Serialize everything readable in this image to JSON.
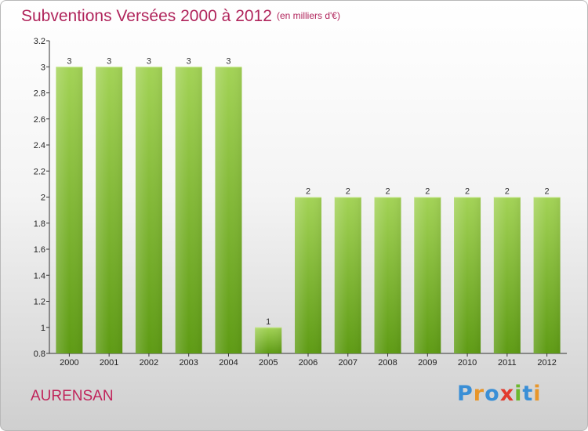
{
  "header": {
    "title": "Subventions Versées 2000 à 2012",
    "subtitle": "(en milliers d'€)"
  },
  "footer": {
    "commune": "AURENSAN",
    "logo_text": "Proxiti"
  },
  "colors": {
    "title": "#b0245b",
    "bar_top": "#9fd050",
    "bar_bottom": "#5e9b14",
    "axis": "#333333"
  },
  "chart_data": {
    "type": "bar",
    "title": "Subventions Versées 2000 à 2012",
    "subtitle": "(en milliers d'€)",
    "categories": [
      "2000",
      "2001",
      "2002",
      "2003",
      "2004",
      "2005",
      "2006",
      "2007",
      "2008",
      "2009",
      "2010",
      "2011",
      "2012"
    ],
    "values": [
      3,
      3,
      3,
      3,
      3,
      1,
      2,
      2,
      2,
      2,
      2,
      2,
      2
    ],
    "data_labels": [
      "3",
      "3",
      "3",
      "3",
      "3",
      "1",
      "2",
      "2",
      "2",
      "2",
      "2",
      "2",
      "2"
    ],
    "ylim": [
      0.8,
      3.2
    ],
    "yticks": [
      0.8,
      1,
      1.2,
      1.4,
      1.6,
      1.8,
      2,
      2.2,
      2.4,
      2.6,
      2.8,
      3,
      3.2
    ],
    "ytick_labels": [
      "0.8",
      "1",
      "1.2",
      "1.4",
      "1.6",
      "1.8",
      "2",
      "2.2",
      "2.4",
      "2.6",
      "2.8",
      "3",
      "3.2"
    ],
    "xlabel": "",
    "ylabel": "",
    "grid": false,
    "legend": "none"
  }
}
